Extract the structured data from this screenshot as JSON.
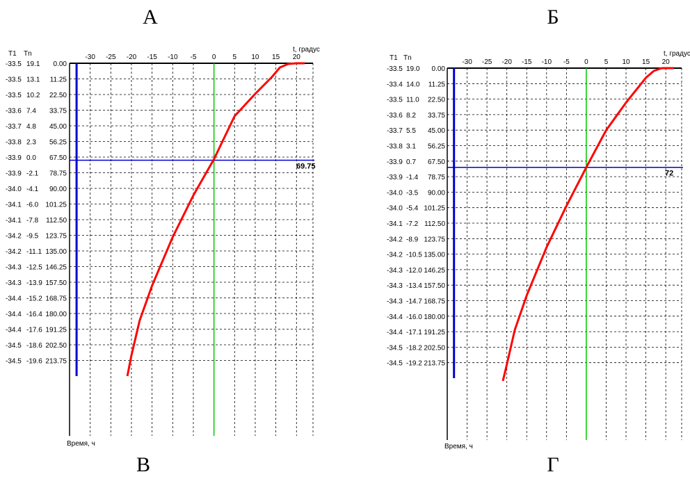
{
  "letters": {
    "top_left": "А",
    "top_right": "Б",
    "bottom_left": "В",
    "bottom_right": "Г"
  },
  "chart_data": [
    {
      "type": "line",
      "xlabel": "t, градус",
      "ylabel": "Время, ч",
      "col_header_t1": "T1",
      "col_header_tn": "Tn",
      "xticks": [
        -30,
        -25,
        -20,
        -15,
        -10,
        -5,
        0,
        5,
        10,
        15,
        20
      ],
      "xlim": [
        -35,
        24
      ],
      "ylim": [
        0,
        225
      ],
      "y_ticks": [
        "0.00",
        "11.25",
        "22.50",
        "33.75",
        "45.00",
        "56.25",
        "67.50",
        "78.75",
        "90.00",
        "101.25",
        "112.50",
        "123.75",
        "135.00",
        "146.25",
        "157.50",
        "168.75",
        "180.00",
        "191.25",
        "202.50",
        "213.75"
      ],
      "t1": [
        "-33.5",
        "-33.5",
        "-33.5",
        "-33.6",
        "-33.7",
        "-33.8",
        "-33.9",
        "-33.9",
        "-34.0",
        "-34.1",
        "-34.1",
        "-34.2",
        "-34.2",
        "-34.3",
        "-34.3",
        "-34.4",
        "-34.4",
        "-34.4",
        "-34.5",
        "-34.5"
      ],
      "tn": [
        "19.1",
        "13.1",
        "10.2",
        "7.4",
        "4.8",
        "2.3",
        "0.0",
        "-2.1",
        "-4.1",
        "-6.0",
        "-7.8",
        "-9.5",
        "-11.1",
        "-12.5",
        "-13.9",
        "-15.2",
        "-16.4",
        "-17.6",
        "-18.6",
        "-19.6"
      ],
      "marker_value": 69.75,
      "marker_label": "69.75",
      "series": [
        {
          "color": "#ff0000",
          "points": [
            [
              22,
              0
            ],
            [
              20,
              0
            ],
            [
              18,
              0.5
            ],
            [
              16,
              3
            ],
            [
              14,
              10
            ],
            [
              10,
              22
            ],
            [
              5,
              38
            ],
            [
              0,
              69
            ],
            [
              -5,
              95
            ],
            [
              -10,
              125
            ],
            [
              -15,
              160
            ],
            [
              -18,
              185
            ],
            [
              -20,
              210
            ],
            [
              -21,
              225
            ]
          ]
        },
        {
          "color": "#0000cc",
          "points": [
            [
              -33.3,
              0
            ],
            [
              -33.3,
              5
            ],
            [
              -33.3,
              20
            ],
            [
              -33.3,
              225
            ]
          ]
        }
      ],
      "zero_line_color": "#00c800",
      "marker_line_color": "#0000cc"
    },
    {
      "type": "line",
      "xlabel": "t, градус",
      "ylabel": "Время, ч",
      "col_header_t1": "T1",
      "col_header_tn": "Tn",
      "xticks": [
        -30,
        -25,
        -20,
        -15,
        -10,
        -5,
        0,
        5,
        10,
        15,
        20
      ],
      "xlim": [
        -35,
        24
      ],
      "ylim": [
        0,
        225
      ],
      "y_ticks": [
        "0.00",
        "11.25",
        "22.50",
        "33.75",
        "45.00",
        "56.25",
        "67.50",
        "78.75",
        "90.00",
        "101.25",
        "112.50",
        "123.75",
        "135.00",
        "146.25",
        "157.50",
        "168.75",
        "180.00",
        "191.25",
        "202.50",
        "213.75"
      ],
      "t1": [
        "-33.5",
        "-33.4",
        "-33.5",
        "-33.6",
        "-33.7",
        "-33.8",
        "-33.9",
        "-33.9",
        "-34.0",
        "-34.0",
        "-34.1",
        "-34.2",
        "-34.2",
        "-34.3",
        "-34.3",
        "-34.3",
        "-34.4",
        "-34.4",
        "-34.5",
        "-34.5"
      ],
      "tn": [
        "19.0",
        "14.0",
        "11.0",
        "8.2",
        "5.5",
        "3.1",
        "0.7",
        "-1.4",
        "-3.5",
        "-5.4",
        "-7.2",
        "-8.9",
        "-10.5",
        "-12.0",
        "-13.4",
        "-14.7",
        "-16.0",
        "-17.1",
        "-18.2",
        "-19.2"
      ],
      "marker_value": 72,
      "marker_label": "72",
      "series": [
        {
          "color": "#ff0000",
          "points": [
            [
              22,
              0
            ],
            [
              19,
              0
            ],
            [
              17,
              2
            ],
            [
              15,
              7
            ],
            [
              10,
              25
            ],
            [
              5,
              45
            ],
            [
              0,
              72
            ],
            [
              -5,
              100
            ],
            [
              -10,
              130
            ],
            [
              -15,
              165
            ],
            [
              -18,
              190
            ],
            [
              -20,
              215
            ],
            [
              -21,
              227
            ]
          ]
        },
        {
          "color": "#0000cc",
          "points": [
            [
              -33.3,
              0
            ],
            [
              -33.3,
              5
            ],
            [
              -33.3,
              20
            ],
            [
              -33.3,
              225
            ]
          ]
        }
      ],
      "zero_line_color": "#00c800",
      "marker_line_color": "#0000cc"
    }
  ]
}
